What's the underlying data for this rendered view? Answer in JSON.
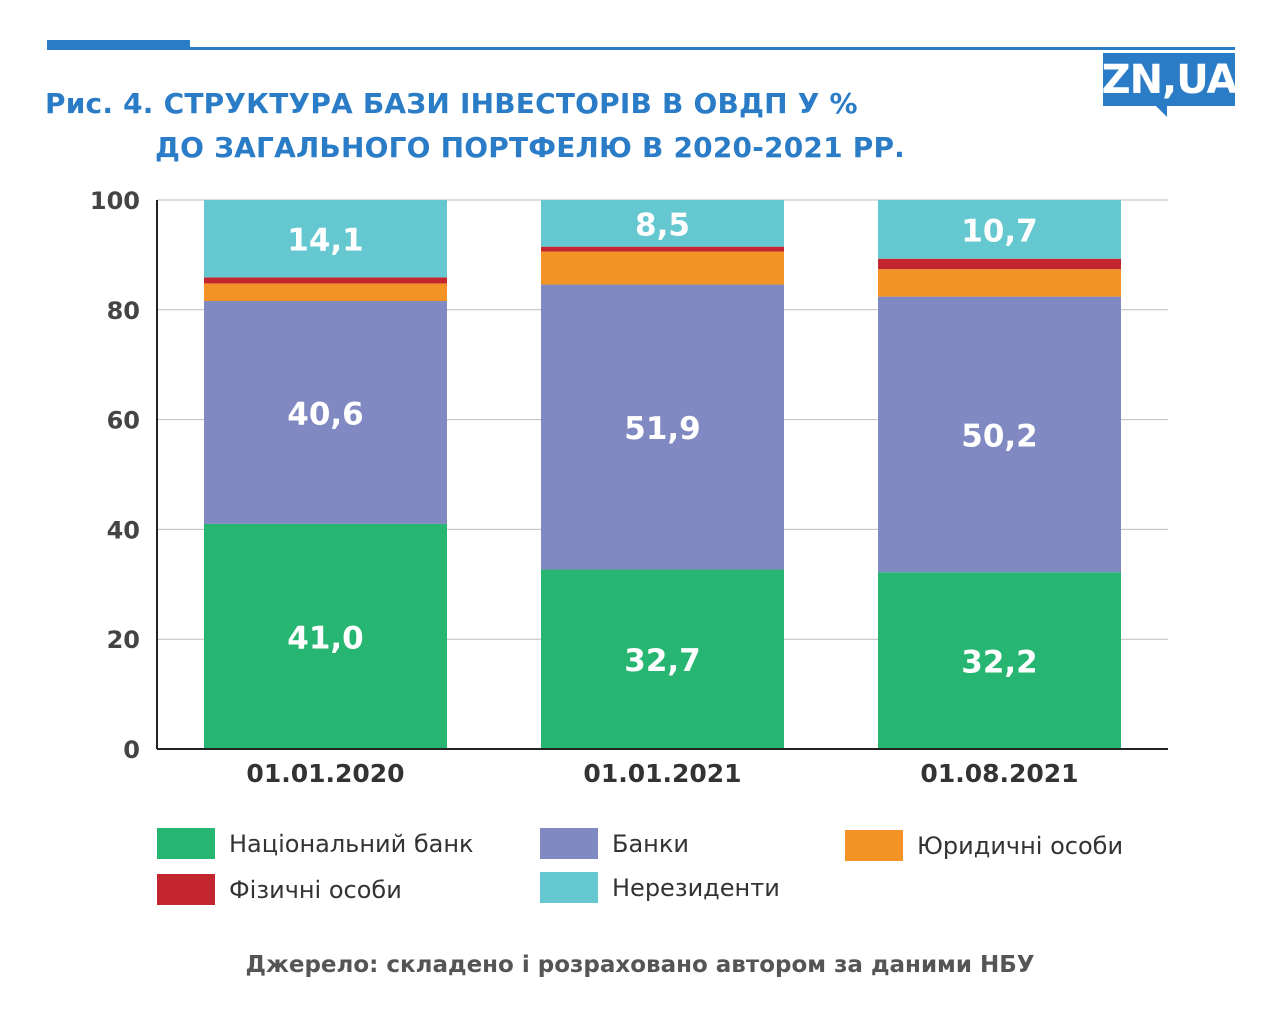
{
  "header": {
    "title_line1": "Рис. 4. СТРУКТУРА БАЗИ ІНВЕСТОРІВ В ОВДП У %",
    "title_line2": "ДО ЗАГАЛЬНОГО ПОРТФЕЛЮ В 2020-2021 РР.",
    "logo_text": "ZN,UA"
  },
  "colors": {
    "brand": "#2a7cc7",
    "national_bank": "#27b572",
    "banks": "#8189c2",
    "legal_entities": "#f39325",
    "individuals": "#c3262f",
    "nonresidents": "#65c7d0"
  },
  "chart_data": {
    "type": "bar",
    "stacked": true,
    "categories": [
      "01.01.2020",
      "01.01.2021",
      "01.08.2021"
    ],
    "ylim": [
      0,
      100
    ],
    "yticks": [
      0,
      20,
      40,
      60,
      80,
      100
    ],
    "grid": true,
    "legend_position": "bottom",
    "series": [
      {
        "name": "Національний банк",
        "values": [
          41.0,
          32.7,
          32.2
        ],
        "labels": [
          "41,0",
          "32,7",
          "32,2"
        ],
        "color": "#27b572"
      },
      {
        "name": "Банки",
        "values": [
          40.6,
          51.9,
          50.2
        ],
        "labels": [
          "40,6",
          "51,9",
          "50,2"
        ],
        "color": "#8189c2"
      },
      {
        "name": "Юридичні особи",
        "values": [
          3.2,
          6.0,
          5.0
        ],
        "labels": [
          "",
          "",
          ""
        ],
        "color": "#f39325"
      },
      {
        "name": "Фізичні особи",
        "values": [
          1.1,
          0.9,
          1.9
        ],
        "labels": [
          "",
          "",
          ""
        ],
        "color": "#c3262f"
      },
      {
        "name": "Нерезиденти",
        "values": [
          14.1,
          8.5,
          10.7
        ],
        "labels": [
          "14,1",
          "8,5",
          "10,7"
        ],
        "color": "#65c7d0"
      }
    ]
  },
  "source": "Джерело: складено і розраховано автором за даними НБУ"
}
